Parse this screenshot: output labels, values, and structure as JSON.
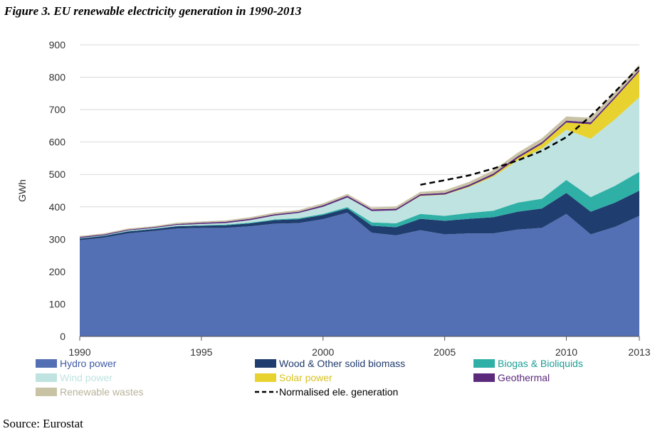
{
  "page": {
    "title": "Figure 3. EU renewable electricity generation in 1990-2013",
    "source": "Source: Eurostat"
  },
  "chart_data": {
    "type": "area",
    "title": "Figure 3. EU renewable electricity generation in 1990-2013",
    "ylabel": "GWh",
    "xlabel": "",
    "x": [
      1990,
      1991,
      1992,
      1993,
      1994,
      1995,
      1996,
      1997,
      1998,
      1999,
      2000,
      2001,
      2002,
      2003,
      2004,
      2005,
      2006,
      2007,
      2008,
      2009,
      2010,
      2011,
      2012,
      2013
    ],
    "xticks": [
      "1990",
      "1995",
      "2000",
      "2005",
      "2010",
      "2013"
    ],
    "xtick_values": [
      1990,
      1995,
      2000,
      2005,
      2010,
      2013
    ],
    "ylim": [
      0,
      900
    ],
    "yticks": [
      "0",
      "100",
      "200",
      "300",
      "400",
      "500",
      "600",
      "700",
      "800",
      "900"
    ],
    "ytick_values": [
      0,
      100,
      200,
      300,
      400,
      500,
      600,
      700,
      800,
      900
    ],
    "grid": "horizontal",
    "legend_position": "bottom",
    "stacked": true,
    "series": [
      {
        "name": "Hydro power",
        "color": "#5470b4",
        "values": [
          297,
          305,
          318,
          325,
          333,
          335,
          335,
          340,
          348,
          350,
          362,
          382,
          320,
          312,
          328,
          315,
          318,
          318,
          330,
          335,
          378,
          315,
          338,
          372
        ]
      },
      {
        "name": "Wood & Other solid biomass",
        "color": "#1f3d6e",
        "values": [
          5,
          5,
          6,
          6,
          7,
          7,
          8,
          9,
          11,
          12,
          13,
          13,
          22,
          25,
          35,
          42,
          45,
          50,
          55,
          60,
          65,
          70,
          75,
          78
        ]
      },
      {
        "name": "Biogas & Bioliquids",
        "color": "#2fb0a6",
        "values": [
          1,
          1,
          1,
          1,
          1,
          1,
          2,
          2,
          2,
          3,
          3,
          4,
          10,
          12,
          15,
          15,
          18,
          20,
          28,
          30,
          40,
          45,
          52,
          58
        ]
      },
      {
        "name": "Wind power",
        "color": "#bfe3e0",
        "values": [
          1,
          1,
          2,
          2,
          3,
          4,
          5,
          8,
          12,
          16,
          22,
          30,
          35,
          40,
          55,
          65,
          80,
          105,
          130,
          155,
          155,
          180,
          205,
          230
        ]
      },
      {
        "name": "Solar power",
        "color": "#e8d22f",
        "values": [
          0,
          0,
          0,
          0,
          0,
          0,
          0,
          0,
          0,
          0,
          0,
          0,
          0,
          0,
          1,
          1,
          2,
          4,
          7,
          14,
          22,
          45,
          65,
          80
        ]
      },
      {
        "name": "Geothermal",
        "color": "#5b2a7c",
        "values": [
          3,
          3,
          3,
          3,
          3,
          4,
          4,
          4,
          4,
          4,
          5,
          5,
          5,
          5,
          5,
          5,
          5,
          6,
          6,
          6,
          6,
          6,
          6,
          6
        ]
      },
      {
        "name": "Renewable wastes",
        "color": "#c9c3a6",
        "values": [
          3,
          3,
          3,
          3,
          4,
          4,
          4,
          5,
          5,
          5,
          6,
          6,
          6,
          7,
          7,
          8,
          9,
          10,
          11,
          12,
          13,
          14,
          14,
          15
        ]
      }
    ],
    "line_series": [
      {
        "name": "Normalised ele. generation",
        "style": "dashed",
        "color": "#000000",
        "x": [
          2004,
          2005,
          2006,
          2007,
          2008,
          2009,
          2010,
          2011,
          2012,
          2013
        ],
        "values": [
          468,
          482,
          497,
          518,
          543,
          573,
          615,
          680,
          755,
          832
        ]
      }
    ],
    "legend": [
      {
        "name": "Hydro power",
        "color": "#5470b4",
        "kind": "swatch"
      },
      {
        "name": "Wood & Other solid biomass",
        "color": "#1f3d6e",
        "kind": "swatch"
      },
      {
        "name": "Biogas & Bioliquids",
        "color": "#2fb0a6",
        "kind": "swatch"
      },
      {
        "name": "Wind power",
        "color": "#bfe3e0",
        "kind": "swatch"
      },
      {
        "name": "Solar power",
        "color": "#e8d22f",
        "kind": "swatch"
      },
      {
        "name": "Geothermal",
        "color": "#5b2a7c",
        "kind": "swatch"
      },
      {
        "name": "Renewable wastes",
        "color": "#c9c3a6",
        "kind": "swatch"
      },
      {
        "name": "Normalised ele. generation",
        "color": "#000000",
        "kind": "dashed"
      }
    ]
  }
}
